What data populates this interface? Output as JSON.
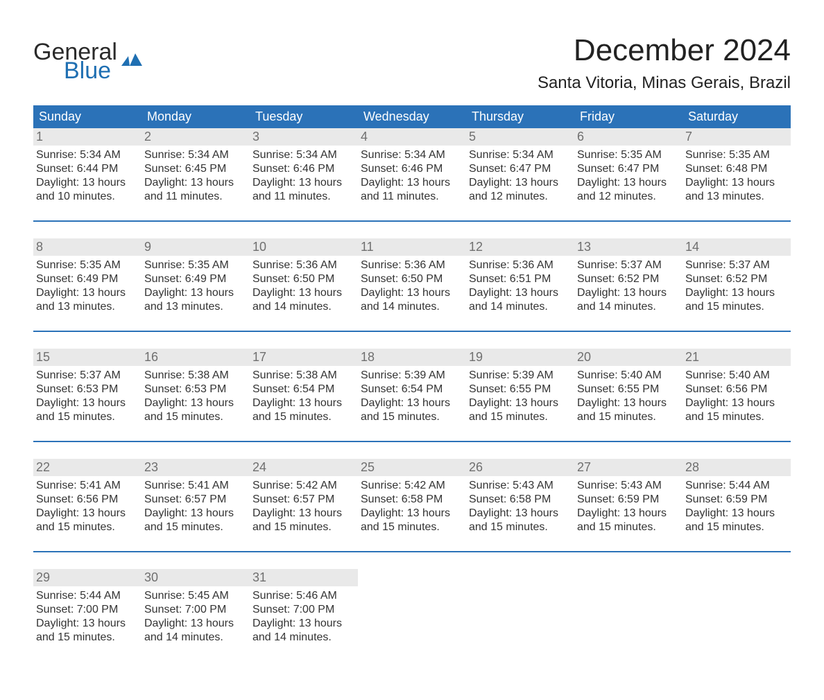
{
  "brand": {
    "line1": "General",
    "line2": "Blue"
  },
  "title": "December 2024",
  "subtitle": "Santa Vitoria, Minas Gerais, Brazil",
  "colors": {
    "header_blue": "#2b72b8",
    "rule_blue": "#2b72b8",
    "daynum_bg": "#e9e9e9",
    "daynum_text": "#6f6f6f",
    "logo_blue": "#1f6fb2",
    "logo_dark": "#2a2a2a",
    "body_text": "#333333",
    "background": "#ffffff"
  },
  "typography": {
    "title_fontsize": 44,
    "subtitle_fontsize": 24,
    "header_fontsize": 18,
    "daynum_fontsize": 18,
    "body_fontsize": 16,
    "font_family": "Arial"
  },
  "weekdays": [
    "Sunday",
    "Monday",
    "Tuesday",
    "Wednesday",
    "Thursday",
    "Friday",
    "Saturday"
  ],
  "weeks": [
    [
      {
        "n": "1",
        "sunrise": "5:34 AM",
        "sunset": "6:44 PM",
        "daylight": "13 hours and 10 minutes."
      },
      {
        "n": "2",
        "sunrise": "5:34 AM",
        "sunset": "6:45 PM",
        "daylight": "13 hours and 11 minutes."
      },
      {
        "n": "3",
        "sunrise": "5:34 AM",
        "sunset": "6:46 PM",
        "daylight": "13 hours and 11 minutes."
      },
      {
        "n": "4",
        "sunrise": "5:34 AM",
        "sunset": "6:46 PM",
        "daylight": "13 hours and 11 minutes."
      },
      {
        "n": "5",
        "sunrise": "5:34 AM",
        "sunset": "6:47 PM",
        "daylight": "13 hours and 12 minutes."
      },
      {
        "n": "6",
        "sunrise": "5:35 AM",
        "sunset": "6:47 PM",
        "daylight": "13 hours and 12 minutes."
      },
      {
        "n": "7",
        "sunrise": "5:35 AM",
        "sunset": "6:48 PM",
        "daylight": "13 hours and 13 minutes."
      }
    ],
    [
      {
        "n": "8",
        "sunrise": "5:35 AM",
        "sunset": "6:49 PM",
        "daylight": "13 hours and 13 minutes."
      },
      {
        "n": "9",
        "sunrise": "5:35 AM",
        "sunset": "6:49 PM",
        "daylight": "13 hours and 13 minutes."
      },
      {
        "n": "10",
        "sunrise": "5:36 AM",
        "sunset": "6:50 PM",
        "daylight": "13 hours and 14 minutes."
      },
      {
        "n": "11",
        "sunrise": "5:36 AM",
        "sunset": "6:50 PM",
        "daylight": "13 hours and 14 minutes."
      },
      {
        "n": "12",
        "sunrise": "5:36 AM",
        "sunset": "6:51 PM",
        "daylight": "13 hours and 14 minutes."
      },
      {
        "n": "13",
        "sunrise": "5:37 AM",
        "sunset": "6:52 PM",
        "daylight": "13 hours and 14 minutes."
      },
      {
        "n": "14",
        "sunrise": "5:37 AM",
        "sunset": "6:52 PM",
        "daylight": "13 hours and 15 minutes."
      }
    ],
    [
      {
        "n": "15",
        "sunrise": "5:37 AM",
        "sunset": "6:53 PM",
        "daylight": "13 hours and 15 minutes."
      },
      {
        "n": "16",
        "sunrise": "5:38 AM",
        "sunset": "6:53 PM",
        "daylight": "13 hours and 15 minutes."
      },
      {
        "n": "17",
        "sunrise": "5:38 AM",
        "sunset": "6:54 PM",
        "daylight": "13 hours and 15 minutes."
      },
      {
        "n": "18",
        "sunrise": "5:39 AM",
        "sunset": "6:54 PM",
        "daylight": "13 hours and 15 minutes."
      },
      {
        "n": "19",
        "sunrise": "5:39 AM",
        "sunset": "6:55 PM",
        "daylight": "13 hours and 15 minutes."
      },
      {
        "n": "20",
        "sunrise": "5:40 AM",
        "sunset": "6:55 PM",
        "daylight": "13 hours and 15 minutes."
      },
      {
        "n": "21",
        "sunrise": "5:40 AM",
        "sunset": "6:56 PM",
        "daylight": "13 hours and 15 minutes."
      }
    ],
    [
      {
        "n": "22",
        "sunrise": "5:41 AM",
        "sunset": "6:56 PM",
        "daylight": "13 hours and 15 minutes."
      },
      {
        "n": "23",
        "sunrise": "5:41 AM",
        "sunset": "6:57 PM",
        "daylight": "13 hours and 15 minutes."
      },
      {
        "n": "24",
        "sunrise": "5:42 AM",
        "sunset": "6:57 PM",
        "daylight": "13 hours and 15 minutes."
      },
      {
        "n": "25",
        "sunrise": "5:42 AM",
        "sunset": "6:58 PM",
        "daylight": "13 hours and 15 minutes."
      },
      {
        "n": "26",
        "sunrise": "5:43 AM",
        "sunset": "6:58 PM",
        "daylight": "13 hours and 15 minutes."
      },
      {
        "n": "27",
        "sunrise": "5:43 AM",
        "sunset": "6:59 PM",
        "daylight": "13 hours and 15 minutes."
      },
      {
        "n": "28",
        "sunrise": "5:44 AM",
        "sunset": "6:59 PM",
        "daylight": "13 hours and 15 minutes."
      }
    ],
    [
      {
        "n": "29",
        "sunrise": "5:44 AM",
        "sunset": "7:00 PM",
        "daylight": "13 hours and 15 minutes."
      },
      {
        "n": "30",
        "sunrise": "5:45 AM",
        "sunset": "7:00 PM",
        "daylight": "13 hours and 14 minutes."
      },
      {
        "n": "31",
        "sunrise": "5:46 AM",
        "sunset": "7:00 PM",
        "daylight": "13 hours and 14 minutes."
      },
      null,
      null,
      null,
      null
    ]
  ],
  "labels": {
    "sunrise": "Sunrise:",
    "sunset": "Sunset:",
    "daylight": "Daylight:"
  }
}
